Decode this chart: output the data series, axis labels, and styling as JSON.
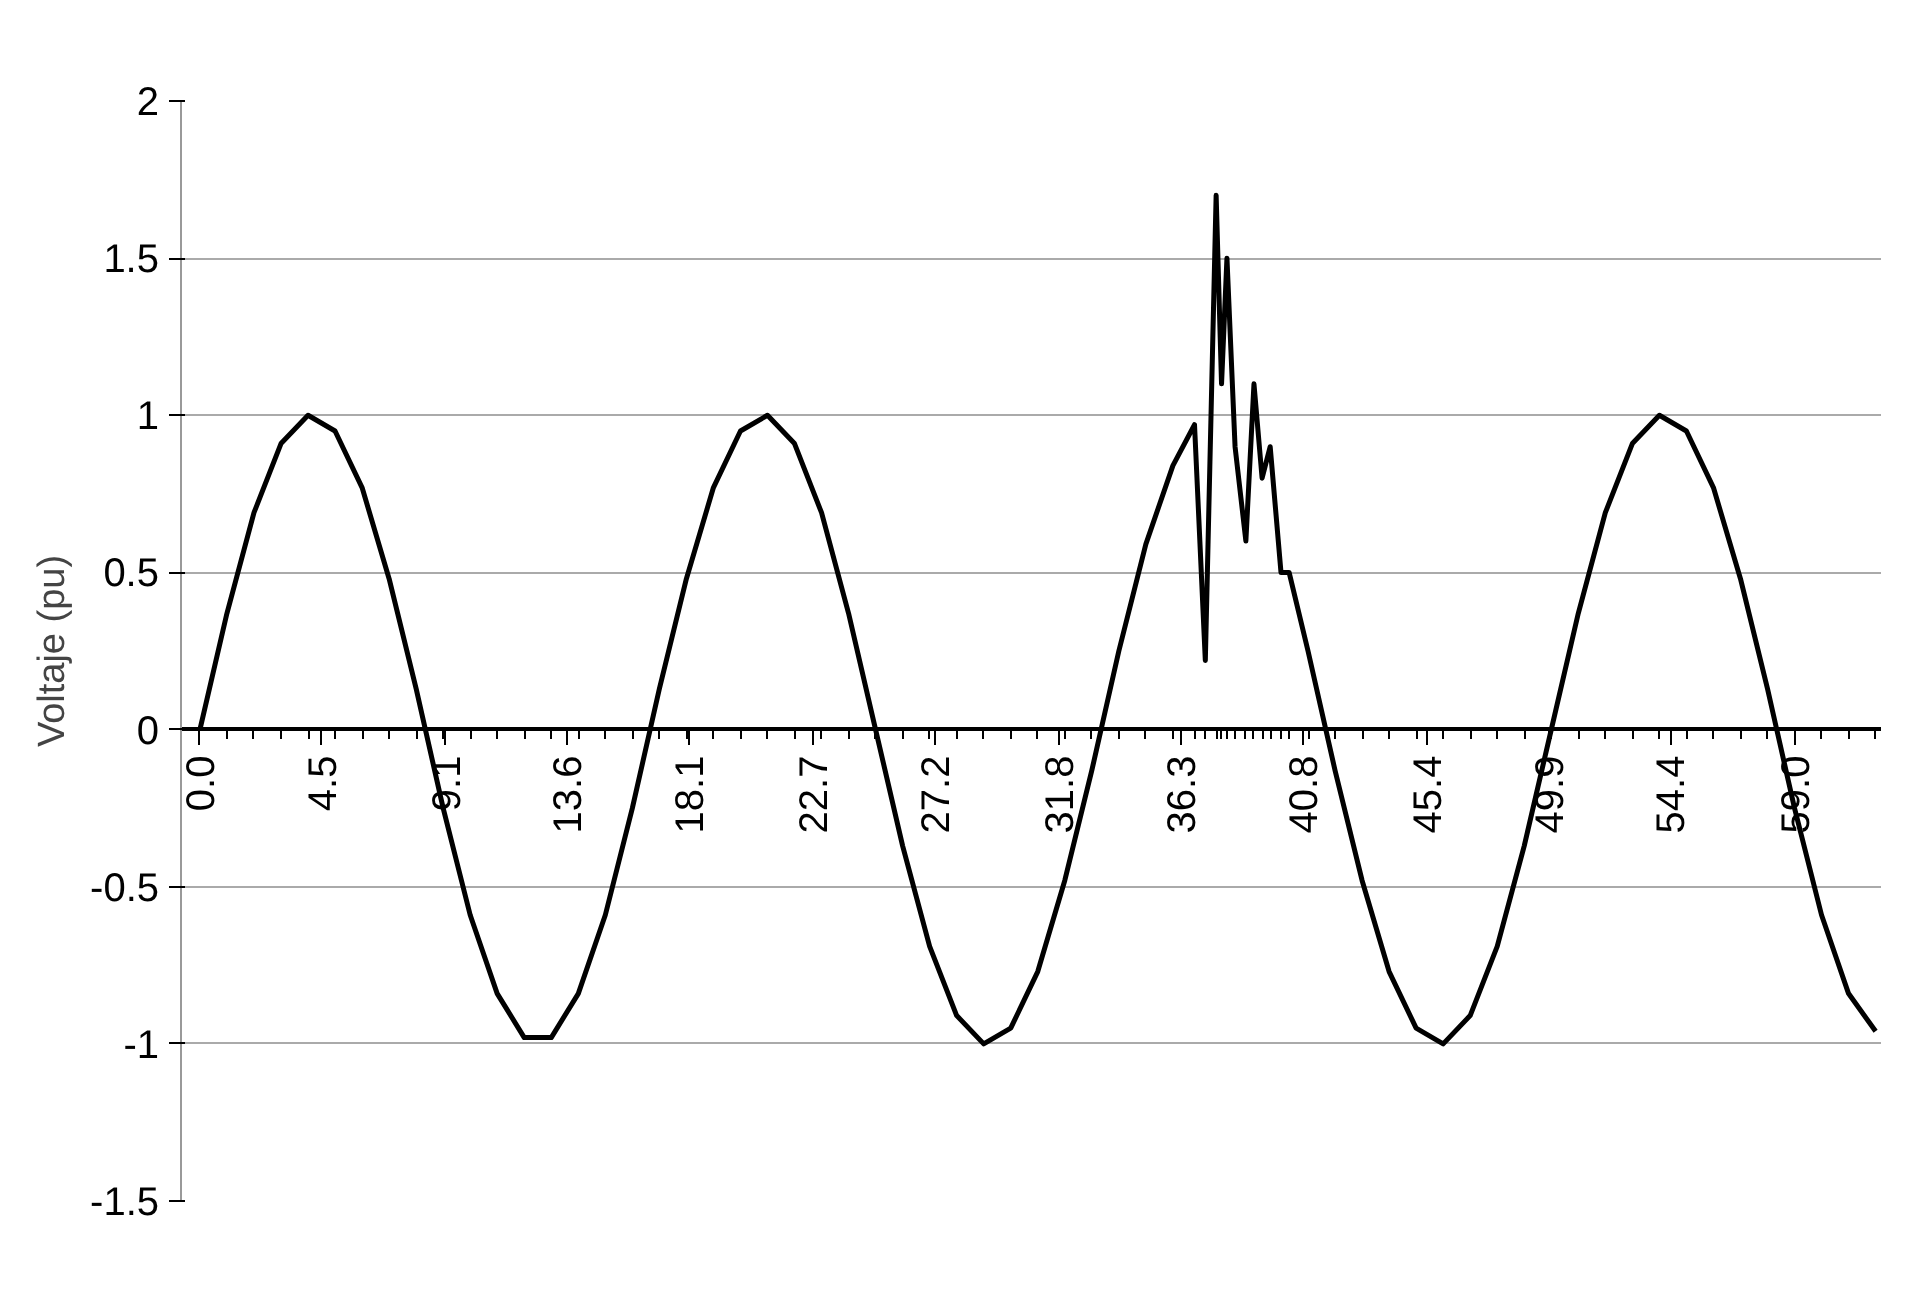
{
  "chart_data": {
    "type": "line",
    "ylabel": "Voltaje (pu)",
    "xlim": [
      -0.7,
      62.2
    ],
    "ylim": [
      -1.5,
      2
    ],
    "xticks": [
      {
        "value": 0,
        "label": "0.0"
      },
      4.5,
      9.1,
      13.6,
      18.1,
      22.7,
      27.2,
      31.8,
      36.3,
      40.8,
      45.4,
      49.9,
      54.4,
      {
        "value": 59,
        "label": "59.0"
      }
    ],
    "yticks": [
      -1.5,
      -1,
      -0.5,
      0,
      0.5,
      1,
      1.5,
      2
    ],
    "grid": "y",
    "marker": "none",
    "line_style": "solid",
    "series": [
      {
        "color": "#000000",
        "x": [
          0,
          1,
          2,
          3,
          4,
          5,
          6,
          7,
          8,
          9,
          10,
          11,
          12,
          13,
          14,
          15,
          16,
          17,
          18,
          19,
          20,
          21,
          22,
          23,
          24,
          25,
          26,
          27,
          28,
          29,
          30,
          31,
          32,
          33,
          34,
          35,
          36,
          36.8,
          37.2,
          37.6,
          37.8,
          38.0,
          38.3,
          38.7,
          39.0,
          39.3,
          39.6,
          40.0,
          40.3,
          41,
          42,
          43,
          44,
          45,
          46,
          47,
          48,
          49,
          50,
          51,
          52,
          53,
          54,
          55,
          56,
          57,
          58,
          59,
          60,
          61,
          62
        ],
        "values": [
          0,
          0.37,
          0.69,
          0.91,
          1.0,
          0.95,
          0.77,
          0.48,
          0.13,
          -0.25,
          -0.59,
          -0.84,
          -0.98,
          -0.98,
          -0.84,
          -0.59,
          -0.25,
          0.13,
          0.48,
          0.77,
          0.95,
          1.0,
          0.91,
          0.69,
          0.37,
          0,
          -0.37,
          -0.69,
          -0.91,
          -1.0,
          -0.95,
          -0.77,
          -0.48,
          -0.13,
          0.25,
          0.59,
          0.84,
          0.97,
          0.22,
          1.7,
          1.1,
          1.5,
          0.9,
          0.6,
          1.1,
          0.8,
          0.9,
          0.5,
          0.5,
          0.25,
          -0.13,
          -0.48,
          -0.77,
          -0.95,
          -1.0,
          -0.91,
          -0.69,
          -0.37,
          0,
          0.37,
          0.69,
          0.91,
          1.0,
          0.95,
          0.77,
          0.48,
          0.13,
          -0.25,
          -0.59,
          -0.84,
          -0.96
        ]
      }
    ]
  }
}
